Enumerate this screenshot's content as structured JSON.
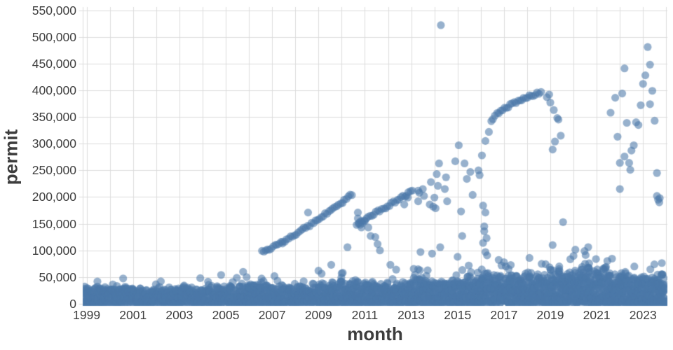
{
  "chart_data": {
    "type": "scatter",
    "title": "",
    "xlabel": "month",
    "ylabel": "permit",
    "x_domain": [
      1998.83,
      2024.05
    ],
    "y_domain": [
      0,
      556000
    ],
    "grid": true,
    "legend": "none",
    "x_ticks": {
      "values": [
        1999,
        2001,
        2003,
        2005,
        2007,
        2009,
        2011,
        2013,
        2015,
        2017,
        2019,
        2021,
        2023
      ],
      "labels": [
        "1999",
        "2001",
        "2003",
        "2005",
        "2007",
        "2009",
        "2011",
        "2013",
        "2015",
        "2017",
        "2019",
        "2021",
        "2023"
      ]
    },
    "y_ticks": {
      "values": [
        0,
        50000,
        100000,
        150000,
        200000,
        250000,
        300000,
        350000,
        400000,
        450000,
        500000,
        550000
      ],
      "labels": [
        "0",
        "50,000",
        "100,000",
        "150,000",
        "200,000",
        "250,000",
        "300,000",
        "350,000",
        "400,000",
        "450,000",
        "500,000",
        "550,000"
      ]
    },
    "grid_years": [
      1999,
      2000,
      2001,
      2002,
      2003,
      2004,
      2005,
      2006,
      2007,
      2008,
      2009,
      2010,
      2011,
      2012,
      2013,
      2014,
      2015,
      2016,
      2017,
      2018,
      2019,
      2020,
      2021,
      2022,
      2023,
      2024
    ],
    "point_color": "#4c78a8",
    "point_opacity": 0.58,
    "point_radius": 5.6,
    "grid_color": "#dcdcdc",
    "tick_label_color": "#3f3f3f",
    "axis_title_color": "#3d3d3d",
    "seed": 20140428,
    "dense_band_segments": [
      {
        "x0": 1998.85,
        "x1": 2003.0,
        "per_month": 9,
        "top_min": 26000,
        "top_max": 34000,
        "fuzz": 0.1
      },
      {
        "x0": 2003.0,
        "x1": 2006.0,
        "per_month": 9,
        "top_min": 28000,
        "top_max": 38000,
        "fuzz": 0.15
      },
      {
        "x0": 2006.0,
        "x1": 2009.5,
        "per_month": 10,
        "top_min": 28000,
        "top_max": 40000,
        "fuzz": 0.15
      },
      {
        "x0": 2009.5,
        "x1": 2013.0,
        "per_month": 10,
        "top_min": 30000,
        "top_max": 44000,
        "fuzz": 0.2
      },
      {
        "x0": 2013.0,
        "x1": 2016.0,
        "per_month": 12,
        "top_min": 36000,
        "top_max": 55000,
        "fuzz": 0.35
      },
      {
        "x0": 2016.0,
        "x1": 2019.0,
        "per_month": 13,
        "top_min": 42000,
        "top_max": 60000,
        "fuzz": 0.35
      },
      {
        "x0": 2019.0,
        "x1": 2021.6,
        "per_month": 14,
        "top_min": 48000,
        "top_max": 72000,
        "fuzz": 0.3
      },
      {
        "x0": 2021.6,
        "x1": 2023.95,
        "per_month": 14,
        "top_min": 42000,
        "top_max": 58000,
        "fuzz": 0.3
      }
    ],
    "streaks": [
      {
        "x0": 2006.55,
        "x1": 2010.45,
        "y0": 97000,
        "y1": 205000,
        "curve": 1.2,
        "step_months": 1,
        "y_jitter": 2500
      },
      {
        "x0": 2010.65,
        "x1": 2013.05,
        "y0": 149000,
        "y1": 211000,
        "curve": 1.0,
        "step_months": 1,
        "y_jitter": 2500
      },
      {
        "x0": 2016.45,
        "x1": 2018.6,
        "y0": 340000,
        "y1": 397000,
        "curve": 0.6,
        "step_months": 1,
        "y_jitter": 2500
      }
    ],
    "points": [
      [
        2002.2,
        42000
      ],
      [
        2003.9,
        48000
      ],
      [
        2004.8,
        54000
      ],
      [
        2005.75,
        60000
      ],
      [
        2005.9,
        50000
      ],
      [
        2007.1,
        52000
      ],
      [
        2007.45,
        113000
      ],
      [
        2008.55,
        171000
      ],
      [
        2009.0,
        62000
      ],
      [
        2009.55,
        73000
      ],
      [
        2010.0,
        57000
      ],
      [
        2010.25,
        106000
      ],
      [
        2010.7,
        171000
      ],
      [
        2010.7,
        160000
      ],
      [
        2010.75,
        152000
      ],
      [
        2010.8,
        148000
      ],
      [
        2010.9,
        151000
      ],
      [
        2011.0,
        155000
      ],
      [
        2010.85,
        143000
      ],
      [
        2011.15,
        143000
      ],
      [
        2011.25,
        127000
      ],
      [
        2011.45,
        125000
      ],
      [
        2011.55,
        112000
      ],
      [
        2011.65,
        100000
      ],
      [
        2012.1,
        73000
      ],
      [
        2012.35,
        64000
      ],
      [
        2012.7,
        186000
      ],
      [
        2012.85,
        199000
      ],
      [
        2013.3,
        212000
      ],
      [
        2013.35,
        208000
      ],
      [
        2013.3,
        192000
      ],
      [
        2013.5,
        215000
      ],
      [
        2013.55,
        202000
      ],
      [
        2013.4,
        97000
      ],
      [
        2013.8,
        186000
      ],
      [
        2013.9,
        94000
      ],
      [
        2013.85,
        228000
      ],
      [
        2013.95,
        182000
      ],
      [
        2014.0,
        199000
      ],
      [
        2014.05,
        179000
      ],
      [
        2014.1,
        243000
      ],
      [
        2014.15,
        221000
      ],
      [
        2014.28,
        522000
      ],
      [
        2014.2,
        263000
      ],
      [
        2014.25,
        106000
      ],
      [
        2014.45,
        215000
      ],
      [
        2014.5,
        237000
      ],
      [
        2014.55,
        192000
      ],
      [
        2014.9,
        267000
      ],
      [
        2015.05,
        297000
      ],
      [
        2015.15,
        173000
      ],
      [
        2015.2,
        127000
      ],
      [
        2015.3,
        263000
      ],
      [
        2015.4,
        234000
      ],
      [
        2015.55,
        247000
      ],
      [
        2015.65,
        204000
      ],
      [
        2015.9,
        250000
      ],
      [
        2015.95,
        241000
      ],
      [
        2016.1,
        184000
      ],
      [
        2016.1,
        114000
      ],
      [
        2016.15,
        145000
      ],
      [
        2016.15,
        136000
      ],
      [
        2016.2,
        171000
      ],
      [
        2016.25,
        123000
      ],
      [
        2016.2,
        97000
      ],
      [
        2016.05,
        278000
      ],
      [
        2016.2,
        305000
      ],
      [
        2016.35,
        322000
      ],
      [
        2015.0,
        88000
      ],
      [
        2017.0,
        78000
      ],
      [
        2018.1,
        86000
      ],
      [
        2018.85,
        387000
      ],
      [
        2018.95,
        392000
      ],
      [
        2019.0,
        377000
      ],
      [
        2019.15,
        363000
      ],
      [
        2019.3,
        348000
      ],
      [
        2019.35,
        345000
      ],
      [
        2019.45,
        315000
      ],
      [
        2019.2,
        304000
      ],
      [
        2019.1,
        289000
      ],
      [
        2019.55,
        153000
      ],
      [
        2019.1,
        110000
      ],
      [
        2020.5,
        75000
      ],
      [
        2020.6,
        67000
      ],
      [
        2021.3,
        62000
      ],
      [
        2021.6,
        358000
      ],
      [
        2021.8,
        386000
      ],
      [
        2021.9,
        313000
      ],
      [
        2022.0,
        264000
      ],
      [
        2022.0,
        215000
      ],
      [
        2022.1,
        394000
      ],
      [
        2022.2,
        441000
      ],
      [
        2022.2,
        276000
      ],
      [
        2022.3,
        339000
      ],
      [
        2022.4,
        264000
      ],
      [
        2022.45,
        251000
      ],
      [
        2022.5,
        287000
      ],
      [
        2022.6,
        297000
      ],
      [
        2022.7,
        340000
      ],
      [
        2022.8,
        335000
      ],
      [
        2022.9,
        372000
      ],
      [
        2023.0,
        412000
      ],
      [
        2023.1,
        428000
      ],
      [
        2023.2,
        481000
      ],
      [
        2023.3,
        448000
      ],
      [
        2023.3,
        374000
      ],
      [
        2023.4,
        399000
      ],
      [
        2023.5,
        343000
      ],
      [
        2023.6,
        245000
      ],
      [
        2023.6,
        202000
      ],
      [
        2023.65,
        195000
      ],
      [
        2023.7,
        190000
      ],
      [
        2023.72,
        198000
      ]
    ]
  }
}
